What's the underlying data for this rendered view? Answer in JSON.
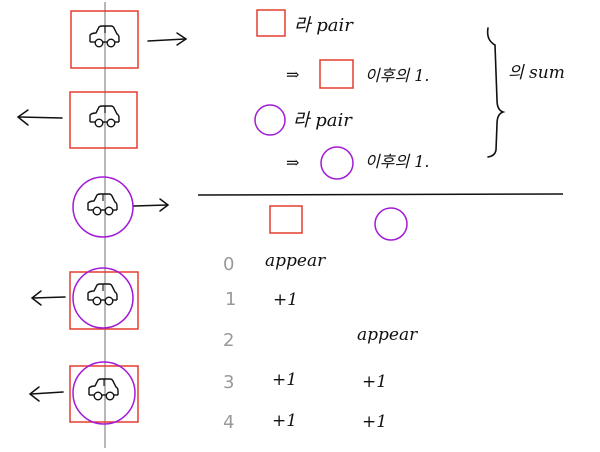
{
  "colors": {
    "ink": "#111111",
    "square": "#e53d2f",
    "circle": "#a21bd6",
    "axis": "#9a9a9a",
    "step_numbers": "#9a9a9a"
  },
  "icons": [
    "car-icon",
    "arrow-left-icon",
    "arrow-right-icon",
    "square-marker",
    "circle-marker",
    "right-brace"
  ],
  "notes": {
    "line1": "라 pair",
    "line2_prefix": "⇒",
    "line2_text": "이후의 1.",
    "line3": "라 pair",
    "line4_prefix": "⇒",
    "line4_text": "이후의 1.",
    "brace_label": "의 sum"
  },
  "table": {
    "rows": [
      {
        "step": "0",
        "square": "appear",
        "circle": ""
      },
      {
        "step": "1",
        "square": "+1",
        "circle": ""
      },
      {
        "step": "2",
        "square": "",
        "circle": "appear"
      },
      {
        "step": "3",
        "square": "+1",
        "circle": "+1"
      },
      {
        "step": "4",
        "square": "+1",
        "circle": "+1"
      }
    ]
  }
}
